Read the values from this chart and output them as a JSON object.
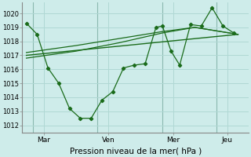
{
  "background_color": "#ceecea",
  "grid_color": "#b0d8d4",
  "line_color": "#1a6b1a",
  "vline_color": "#8ab8b0",
  "xlabel": "Pression niveau de la mer( hPa )",
  "ylim": [
    1011.5,
    1020.8
  ],
  "yticks": [
    1012,
    1013,
    1014,
    1015,
    1016,
    1017,
    1018,
    1019,
    1020
  ],
  "day_labels": [
    "Mar",
    "Ven",
    "Mer",
    "Jeu"
  ],
  "day_positions": [
    1,
    4,
    7,
    9.5
  ],
  "vline_positions": [
    0.5,
    3.5,
    6.5,
    9.0
  ],
  "xlim": [
    0.0,
    10.5
  ],
  "series1_x": [
    0.2,
    0.7,
    1.2,
    1.7,
    2.2,
    2.7,
    3.2,
    3.7,
    4.2,
    4.7,
    5.2,
    5.7,
    6.2,
    6.5,
    6.9,
    7.3,
    7.8,
    8.3,
    8.8,
    9.3,
    9.8
  ],
  "series1_y": [
    1019.3,
    1018.5,
    1016.1,
    1015.0,
    1013.2,
    1012.5,
    1012.5,
    1013.8,
    1014.4,
    1016.1,
    1016.3,
    1016.4,
    1019.0,
    1019.1,
    1017.3,
    1016.3,
    1019.2,
    1019.1,
    1020.4,
    1019.1,
    1018.6
  ],
  "series2_x": [
    0.2,
    2.5,
    4.5,
    6.5,
    8.0,
    10.0
  ],
  "series2_y": [
    1017.2,
    1017.7,
    1018.2,
    1018.7,
    1019.0,
    1018.5
  ],
  "series3_x": [
    0.2,
    2.5,
    4.5,
    6.5,
    8.0,
    10.0
  ],
  "series3_y": [
    1016.8,
    1017.3,
    1017.9,
    1018.6,
    1019.0,
    1018.5
  ],
  "series4_x": [
    0.2,
    10.0
  ],
  "series4_y": [
    1017.0,
    1018.5
  ]
}
